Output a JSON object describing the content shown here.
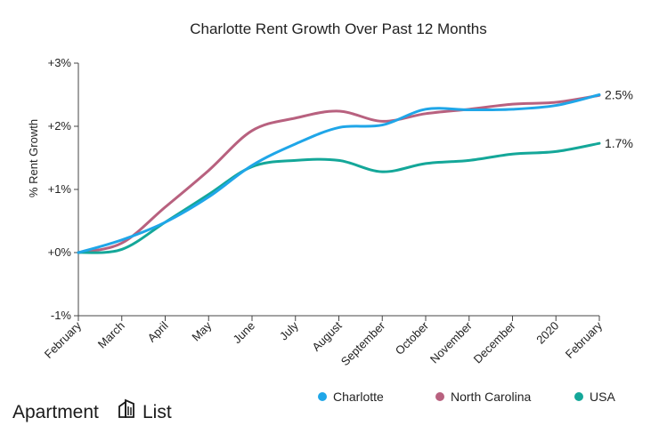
{
  "chart_data": {
    "type": "line",
    "title": "Charlotte Rent Growth Over Past 12 Months",
    "ylabel": "% Rent Growth",
    "xlabel": "",
    "categories": [
      "February",
      "March",
      "April",
      "May",
      "June",
      "July",
      "August",
      "September",
      "October",
      "November",
      "December",
      "2020",
      "February"
    ],
    "ylim": [
      -1,
      3
    ],
    "yticks": [
      {
        "value": 3,
        "label": "+3%"
      },
      {
        "value": 2,
        "label": "+2%"
      },
      {
        "value": 1,
        "label": "+1%"
      },
      {
        "value": 0,
        "label": "+0%"
      },
      {
        "value": -1,
        "label": "-1%"
      }
    ],
    "grid": false,
    "legend_position": "bottom-right",
    "series": [
      {
        "name": "Charlotte",
        "color": "#1fa6e8",
        "values": [
          0.0,
          0.2,
          0.48,
          0.88,
          1.38,
          1.72,
          1.98,
          2.02,
          2.27,
          2.26,
          2.27,
          2.33,
          2.5
        ],
        "end_label": "2.5%"
      },
      {
        "name": "North Carolina",
        "color": "#b8617f",
        "values": [
          0.0,
          0.15,
          0.72,
          1.3,
          1.93,
          2.13,
          2.24,
          2.08,
          2.2,
          2.27,
          2.35,
          2.38,
          2.49
        ],
        "end_label": ""
      },
      {
        "name": "USA",
        "color": "#14a799",
        "values": [
          0.0,
          0.05,
          0.48,
          0.92,
          1.36,
          1.46,
          1.46,
          1.28,
          1.41,
          1.46,
          1.56,
          1.6,
          1.73
        ],
        "end_label": "1.7%"
      }
    ]
  },
  "brand": {
    "text_left": "Apartment",
    "text_right": "List"
  }
}
